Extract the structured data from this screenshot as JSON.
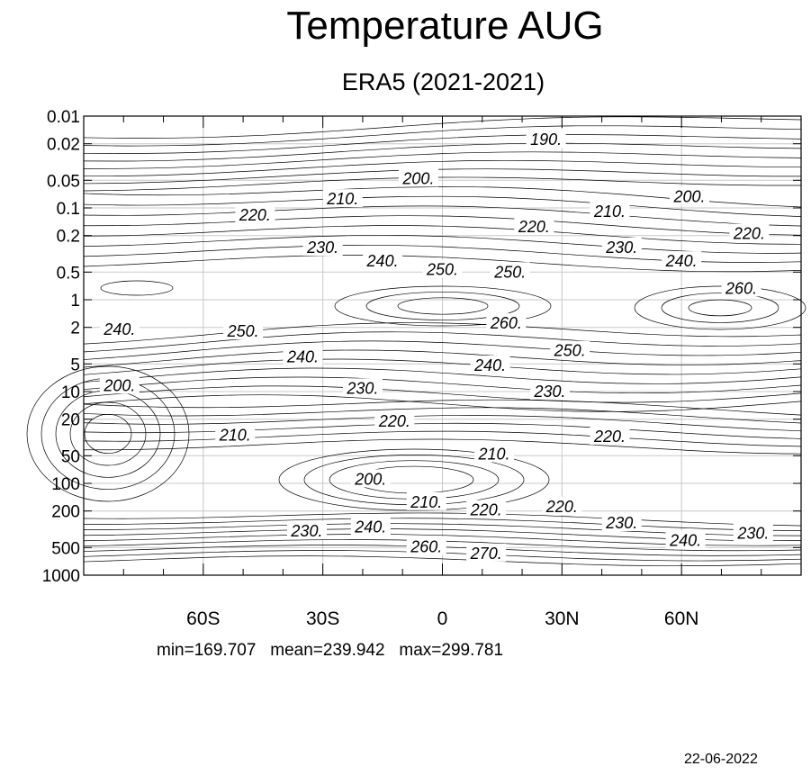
{
  "chart_data": {
    "type": "contour",
    "title": "Temperature AUG",
    "subtitle": "ERA5 (2021-2021)",
    "x_ticks": [
      "60S",
      "30S",
      "0",
      "30N",
      "60N"
    ],
    "x_tick_values": [
      -60,
      -30,
      0,
      30,
      60
    ],
    "xlim": [
      -90,
      90
    ],
    "y_ticks": [
      "0.01",
      "0.02",
      "0.05",
      "0.1",
      "0.2",
      "0.5",
      "1",
      "2",
      "5",
      "10",
      "20",
      "50",
      "100",
      "200",
      "500",
      "1000"
    ],
    "y_tick_values": [
      0.01,
      0.02,
      0.05,
      0.1,
      0.2,
      0.5,
      1,
      2,
      5,
      10,
      20,
      50,
      100,
      200,
      500,
      1000
    ],
    "y_scale": "log",
    "y_inverted": true,
    "grid": true,
    "contour_labels": [
      {
        "text": "190.",
        "lat": 26,
        "p": 0.018
      },
      {
        "text": "200.",
        "lat": -6,
        "p": 0.048
      },
      {
        "text": "210.",
        "lat": -25,
        "p": 0.08
      },
      {
        "text": "200.",
        "lat": 62,
        "p": 0.075
      },
      {
        "text": "220.",
        "lat": -47,
        "p": 0.12
      },
      {
        "text": "210.",
        "lat": 42,
        "p": 0.11
      },
      {
        "text": "220.",
        "lat": 23,
        "p": 0.16
      },
      {
        "text": "220.",
        "lat": 77,
        "p": 0.19
      },
      {
        "text": "230.",
        "lat": -30,
        "p": 0.27
      },
      {
        "text": "230.",
        "lat": 45,
        "p": 0.27
      },
      {
        "text": "240.",
        "lat": -15,
        "p": 0.38
      },
      {
        "text": "240.",
        "lat": 60,
        "p": 0.38
      },
      {
        "text": "250.",
        "lat": 0,
        "p": 0.47
      },
      {
        "text": "250.",
        "lat": 17,
        "p": 0.5
      },
      {
        "text": "260.",
        "lat": 75,
        "p": 0.75
      },
      {
        "text": "260.",
        "lat": 16,
        "p": 1.8
      },
      {
        "text": "240.",
        "lat": -81,
        "p": 2.1
      },
      {
        "text": "250.",
        "lat": -50,
        "p": 2.2
      },
      {
        "text": "250.",
        "lat": 32,
        "p": 3.6
      },
      {
        "text": "240.",
        "lat": -35,
        "p": 4.2
      },
      {
        "text": "240.",
        "lat": 12,
        "p": 5.2
      },
      {
        "text": "200.",
        "lat": -81,
        "p": 8.6
      },
      {
        "text": "230.",
        "lat": -20,
        "p": 9.2
      },
      {
        "text": "230.",
        "lat": 27,
        "p": 10
      },
      {
        "text": "220.",
        "lat": -12,
        "p": 21
      },
      {
        "text": "210.",
        "lat": -52,
        "p": 30
      },
      {
        "text": "220.",
        "lat": 42,
        "p": 31
      },
      {
        "text": "210.",
        "lat": 13,
        "p": 48
      },
      {
        "text": "200.",
        "lat": -18,
        "p": 90
      },
      {
        "text": "210.",
        "lat": -4,
        "p": 160
      },
      {
        "text": "220.",
        "lat": 11,
        "p": 195
      },
      {
        "text": "220.",
        "lat": 30,
        "p": 180
      },
      {
        "text": "230.",
        "lat": 45,
        "p": 270
      },
      {
        "text": "230.",
        "lat": -34,
        "p": 330
      },
      {
        "text": "240.",
        "lat": -18,
        "p": 300
      },
      {
        "text": "240.",
        "lat": 61,
        "p": 420
      },
      {
        "text": "230.",
        "lat": 78,
        "p": 350
      },
      {
        "text": "260.",
        "lat": -4,
        "p": 490
      },
      {
        "text": "270.",
        "lat": 11,
        "p": 580
      }
    ]
  },
  "stats": {
    "min": "169.707",
    "mean": "239.942",
    "max": "299.781"
  },
  "date": "22-06-2022"
}
